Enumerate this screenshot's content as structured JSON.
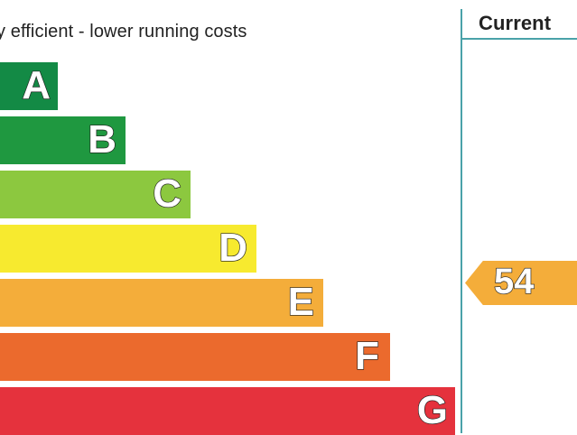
{
  "top_text": "y efficient - lower running costs",
  "header": {
    "current": "Current"
  },
  "bands": [
    {
      "letter": "A",
      "color": "#138a45"
    },
    {
      "letter": "B",
      "color": "#1f9840"
    },
    {
      "letter": "C",
      "color": "#8cc83f"
    },
    {
      "letter": "D",
      "color": "#f7ea2f"
    },
    {
      "letter": "E",
      "color": "#f4ad3a"
    },
    {
      "letter": "F",
      "color": "#eb6a2d"
    },
    {
      "letter": "G",
      "color": "#e5323d"
    }
  ],
  "current": {
    "value": "54",
    "band": "E",
    "color": "#f4ad3a"
  },
  "colors": {
    "divider": "#4aa2a9",
    "text": "#222222"
  }
}
